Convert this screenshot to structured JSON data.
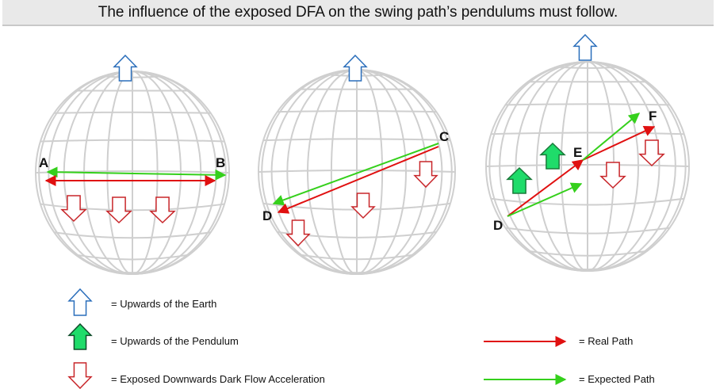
{
  "title": "The influence of the exposed DFA on the swing path’s pendulums must follow.",
  "colors": {
    "earth_up": "#2a6ebb",
    "pendulum_up": "#1fdc6a",
    "dfa_down": "#c8262a",
    "real_path": "#e01010",
    "expected_path": "#35d01c",
    "grid": "#cfcfcf"
  },
  "globes": [
    {
      "labels": [
        "A",
        "B"
      ]
    },
    {
      "labels": [
        "C",
        "D"
      ]
    },
    {
      "labels": [
        "D",
        "E",
        "F"
      ]
    }
  ],
  "legend": {
    "earth_up": "= Upwards of the Earth",
    "pendulum_up": "= Upwards of the Pendulum",
    "dfa_down": "= Exposed Downwards Dark Flow Acceleration",
    "real_path": "= Real Path",
    "expected_path": "= Expected Path"
  }
}
